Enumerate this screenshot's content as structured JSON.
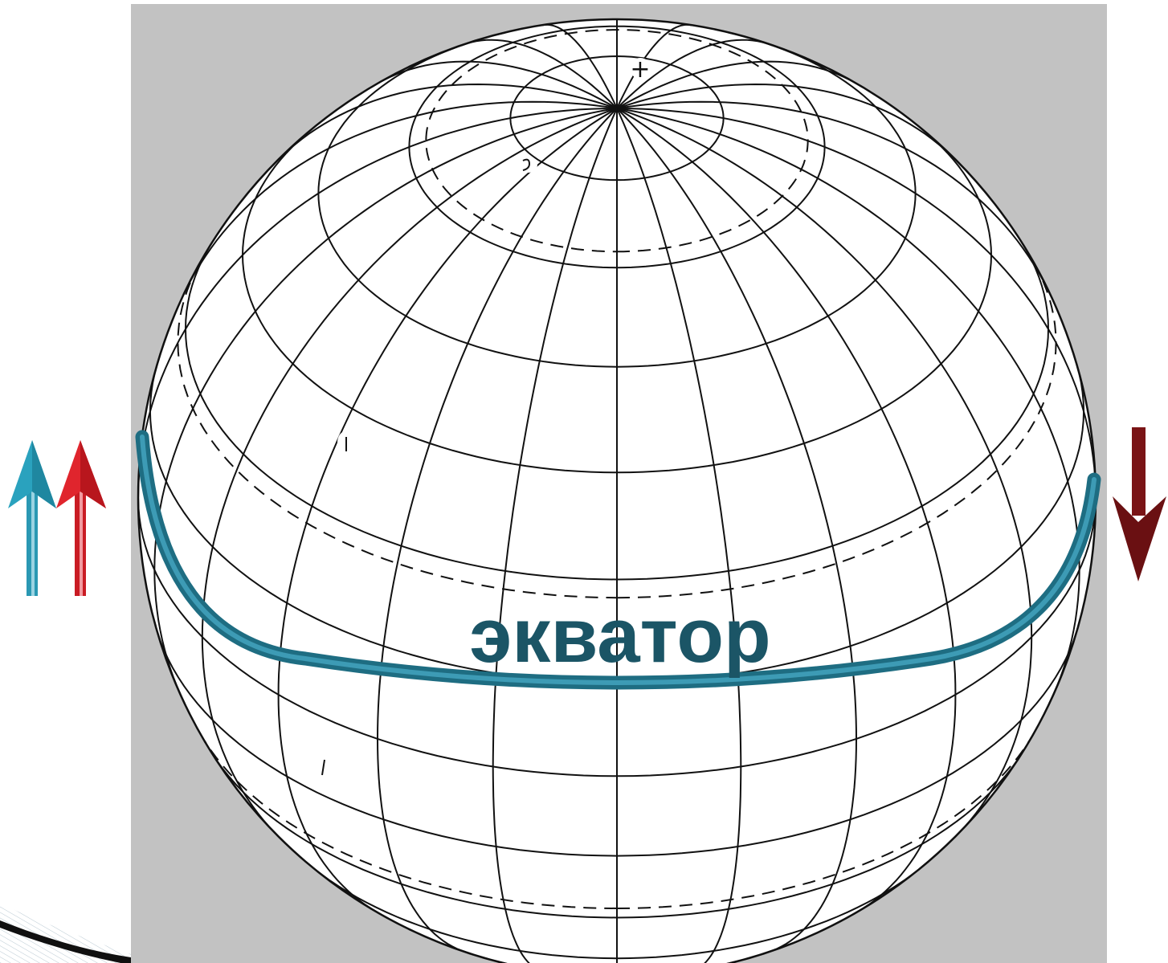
{
  "slide": {
    "equator_label": "экватор",
    "background_panel_color": "#c2c2c2",
    "globe_fill_color": "#ffffff",
    "grid_line_color": "#111111",
    "equator_arc_color": "#2a7d93",
    "equator_label_color": "#1b5566"
  },
  "globe": {
    "pole_marker": "+",
    "meridian_count": 24,
    "parallel_count": 13,
    "dashed_circle_count": 4
  },
  "arrows": [
    {
      "name": "blue-up-arrow",
      "direction": "up",
      "color": "#2aa2be"
    },
    {
      "name": "red-up-arrow",
      "direction": "up",
      "color": "#d8232a"
    },
    {
      "name": "dark-red-down-arrow",
      "direction": "down",
      "color": "#7a1416"
    }
  ]
}
